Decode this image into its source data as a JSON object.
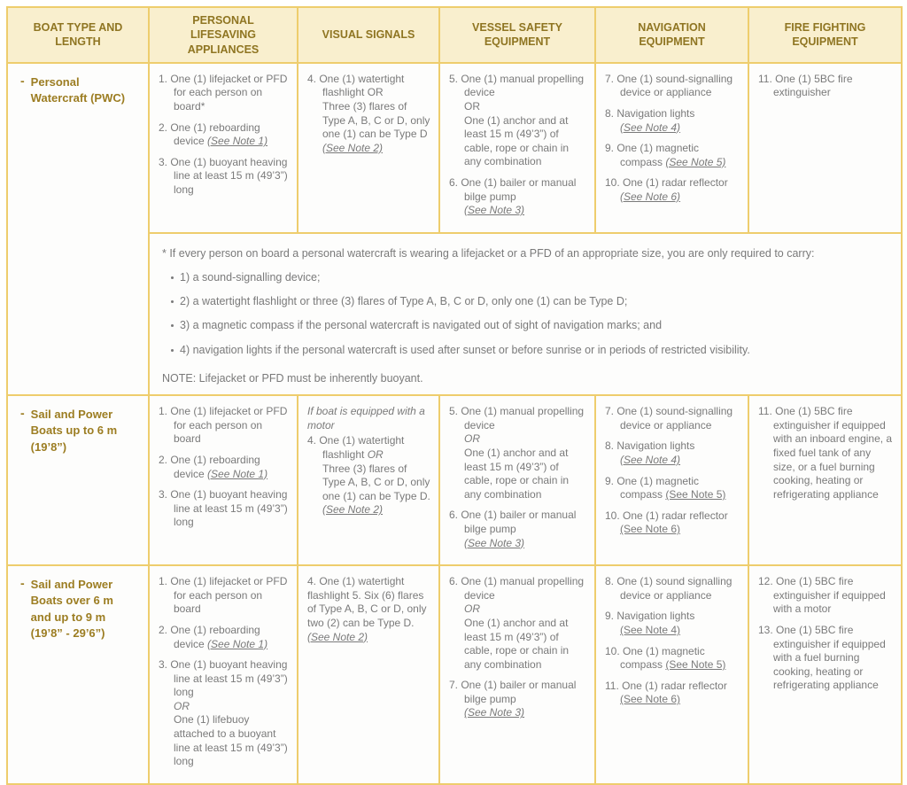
{
  "colors": {
    "border_gold": "#eac45f",
    "header_bg": "#f9efce",
    "header_text": "#8f7522",
    "boat_text": "#9c7d22",
    "body_text": "#7a7a7a"
  },
  "table": {
    "headers": [
      "BOAT TYPE AND LENGTH",
      "PERSONAL LIFESAVING APPLIANCES",
      "VISUAL SIGNALS",
      "VESSEL SAFETY EQUIPMENT",
      "NAVIGATION EQUIPMENT",
      "FIRE FIGHTING EQUIPMENT"
    ],
    "rows": [
      {
        "key": "pwc",
        "boat": "Personal Watercraft (PWC)",
        "boat_rowspan": 2,
        "cells": [
          {
            "items": [
              {
                "num": "1.",
                "segs": [
                  {
                    "t": "One (1) lifejacket or PFD for each person on board*"
                  }
                ]
              },
              {
                "num": "2.",
                "segs": [
                  {
                    "t": "One (1) reboarding device "
                  },
                  {
                    "t": "(See Note 1)",
                    "i": 1,
                    "u": 1
                  }
                ]
              },
              {
                "num": "3.",
                "segs": [
                  {
                    "t": "One (1) buoyant heaving line at least 15 m (49’3”) long"
                  }
                ]
              }
            ]
          },
          {
            "items": [
              {
                "num": "4.",
                "segs": [
                  {
                    "t": "One (1) watertight flashlight OR"
                  },
                  {
                    "br": 1,
                    "t": "Three (3) flares of Type A, B,  C or D, only one (1) can be Type D"
                  },
                  {
                    "br": 1,
                    "t": "(See Note 2)",
                    "i": 1,
                    "u": 1
                  }
                ]
              }
            ]
          },
          {
            "items": [
              {
                "num": "5.",
                "segs": [
                  {
                    "t": "One (1) manual propelling  device"
                  },
                  {
                    "br": 1,
                    "t": "OR"
                  },
                  {
                    "br": 1,
                    "t": "One (1) anchor and at least  15 m (49’3”) of cable, rope or  chain in any combination"
                  }
                ]
              },
              {
                "num": "6.",
                "segs": [
                  {
                    "t": "One (1) bailer or manual  bilge pump"
                  },
                  {
                    "br": 1,
                    "t": "(See Note 3)",
                    "i": 1,
                    "u": 1
                  }
                ]
              }
            ]
          },
          {
            "items": [
              {
                "num": "7.",
                "segs": [
                  {
                    "t": "One (1) sound-signalling device or appliance"
                  }
                ]
              },
              {
                "num": "8.",
                "segs": [
                  {
                    "t": "Navigation lights"
                  },
                  {
                    "br": 1,
                    "t": "(See Note 4)",
                    "i": 1,
                    "u": 1
                  }
                ]
              },
              {
                "num": "9.",
                "segs": [
                  {
                    "t": "One (1) magnetic compass  "
                  },
                  {
                    "t": "(See Note 5)",
                    "i": 1,
                    "u": 1
                  }
                ]
              },
              {
                "num": "10.",
                "segs": [
                  {
                    "t": "One (1) radar reflector"
                  },
                  {
                    "br": 1,
                    "t": "(See Note 6)",
                    "i": 1,
                    "u": 1
                  }
                ]
              }
            ]
          },
          {
            "items": [
              {
                "num": "11.",
                "segs": [
                  {
                    "t": "One (1) 5BC fire extinguisher"
                  }
                ]
              }
            ]
          }
        ]
      },
      {
        "key": "pwc-note",
        "note": {
          "intro": "* If every person on board a personal watercraft is wearing a lifejacket or a PFD of an appropriate size, you are only required to carry:",
          "bullets": [
            "1) a sound-signalling device;",
            "2) a watertight flashlight or three (3) flares of Type A, B, C or D, only one (1) can be Type D;",
            "3) a magnetic compass if the personal watercraft is navigated out of sight of navigation marks; and",
            "4) navigation lights if the personal watercraft is used after sunset or before sunrise or in periods of restricted visibility."
          ],
          "footer": "NOTE: Lifejacket or PFD must be inherently buoyant."
        }
      },
      {
        "key": "sail-up-to-6m",
        "boat": "Sail and Power Boats up to 6 m (19’8”)",
        "cells": [
          {
            "items": [
              {
                "num": "1.",
                "segs": [
                  {
                    "t": "One (1) lifejacket or PFD for each person on board"
                  }
                ]
              },
              {
                "num": "2.",
                "segs": [
                  {
                    "t": "One (1) reboarding device "
                  },
                  {
                    "t": "(See Note 1)",
                    "i": 1,
                    "u": 1
                  }
                ]
              },
              {
                "num": "3.",
                "segs": [
                  {
                    "t": "One (1) buoyant heaving line at least 15 m (49’3”) long"
                  }
                ]
              }
            ]
          },
          {
            "leadin": "If boat is equipped with a motor",
            "items": [
              {
                "num": "4.",
                "segs": [
                  {
                    "t": "One (1) watertight flashlight  "
                  },
                  {
                    "t": "OR",
                    "i": 1
                  },
                  {
                    "br": 1,
                    "t": "Three (3) flares of Type A, B,  C or D, only one (1) can be Type D."
                  },
                  {
                    "br": 1,
                    "t": "(See Note 2)",
                    "i": 1,
                    "u": 1
                  }
                ]
              }
            ]
          },
          {
            "items": [
              {
                "num": "5.",
                "segs": [
                  {
                    "t": "One (1) manual propelling  device"
                  },
                  {
                    "br": 1,
                    "t": "OR",
                    "i": 1
                  },
                  {
                    "br": 1,
                    "t": "One (1) anchor and at least  15 m (49’3”) of cable, rope or  chain in any combination"
                  }
                ]
              },
              {
                "num": "6.",
                "segs": [
                  {
                    "t": "One (1) bailer or manual  bilge pump"
                  },
                  {
                    "br": 1,
                    "t": "(See Note 3)",
                    "i": 1,
                    "u": 1
                  }
                ]
              }
            ]
          },
          {
            "items": [
              {
                "num": "7.",
                "segs": [
                  {
                    "t": "One (1) sound-signalling device or appliance"
                  }
                ]
              },
              {
                "num": "8.",
                "segs": [
                  {
                    "t": "Navigation lights"
                  },
                  {
                    "br": 1,
                    "t": "(See Note 4)",
                    "i": 1,
                    "u": 1
                  }
                ]
              },
              {
                "num": "9.",
                "segs": [
                  {
                    "t": "One (1) magnetic compass  "
                  },
                  {
                    "t": "(See Note 5)",
                    "u": 1
                  }
                ]
              },
              {
                "num": "10.",
                "segs": [
                  {
                    "t": "One (1) radar reflector  "
                  },
                  {
                    "t": "(See Note 6)",
                    "u": 1
                  }
                ]
              }
            ]
          },
          {
            "items": [
              {
                "num": "11.",
                "segs": [
                  {
                    "t": "One (1) 5BC fire extinguisher  if equipped with an inboard  engine, a fixed fuel tank of any size, or a fuel burning cooking, heating or  refrigerating appliance"
                  }
                ]
              }
            ]
          }
        ]
      },
      {
        "key": "sail-6m-to-9m",
        "boat": "Sail and Power Boats over 6 m and up to 9 m (19’8” - 29’6”)",
        "cells": [
          {
            "items": [
              {
                "num": "1.",
                "segs": [
                  {
                    "t": "One (1) lifejacket or PFD for each person on board"
                  }
                ]
              },
              {
                "num": "2.",
                "segs": [
                  {
                    "t": "One (1) reboarding device "
                  },
                  {
                    "t": "(See Note 1)",
                    "i": 1,
                    "u": 1
                  }
                ]
              },
              {
                "num": "3.",
                "segs": [
                  {
                    "t": "One (1) buoyant heaving line at least 15 m (49’3”) long"
                  },
                  {
                    "br": 1,
                    "t": "OR",
                    "i": 1
                  },
                  {
                    "br": 1,
                    "t": "One (1) lifebuoy attached to  a buoyant line at least 15 m (49’3”) long"
                  }
                ]
              }
            ]
          },
          {
            "items": [
              {
                "num": "4.",
                "flat": 1,
                "segs": [
                  {
                    "t": "One (1) watertight flashlight 5. Six (6) flares of Type A, B, C or  D, only two (2) can be Type D."
                  },
                  {
                    "br": 1,
                    "t": "(See Note 2)",
                    "i": 1,
                    "u": 1
                  }
                ]
              }
            ]
          },
          {
            "items": [
              {
                "num": "6.",
                "segs": [
                  {
                    "t": "One (1) manual propelling  device"
                  },
                  {
                    "br": 1,
                    "t": "OR",
                    "i": 1
                  },
                  {
                    "br": 1,
                    "t": "One (1) anchor and at least  15 m (49’3”) of cable, rope or  chain in any combination"
                  }
                ]
              },
              {
                "num": "7.",
                "segs": [
                  {
                    "t": "One (1) bailer or manual  bilge pump"
                  },
                  {
                    "br": 1,
                    "t": "(See Note 3)",
                    "i": 1,
                    "u": 1
                  }
                ]
              }
            ]
          },
          {
            "items": [
              {
                "num": "8.",
                "segs": [
                  {
                    "t": "One (1) sound signalling  device or appliance"
                  }
                ]
              },
              {
                "num": "9.",
                "segs": [
                  {
                    "t": "Navigation lights"
                  },
                  {
                    "br": 1,
                    "t": "(See Note 4)",
                    "u": 1
                  }
                ]
              },
              {
                "num": "10.",
                "segs": [
                  {
                    "t": "One (1) magnetic compass "
                  },
                  {
                    "t": "(See Note 5)",
                    "u": 1
                  }
                ]
              },
              {
                "num": "11.",
                "segs": [
                  {
                    "t": "One (1) radar reflector  "
                  },
                  {
                    "t": "(See Note 6)",
                    "u": 1
                  }
                ]
              }
            ]
          },
          {
            "items": [
              {
                "num": "12.",
                "segs": [
                  {
                    "t": "One (1) 5BC fire extinguisher  if equipped with a motor"
                  }
                ]
              },
              {
                "num": "13.",
                "segs": [
                  {
                    "t": "One (1) 5BC fire extinguisher  if equipped with a fuel burning cooking, heating or  refrigerating appliance"
                  }
                ]
              }
            ]
          }
        ]
      }
    ]
  }
}
